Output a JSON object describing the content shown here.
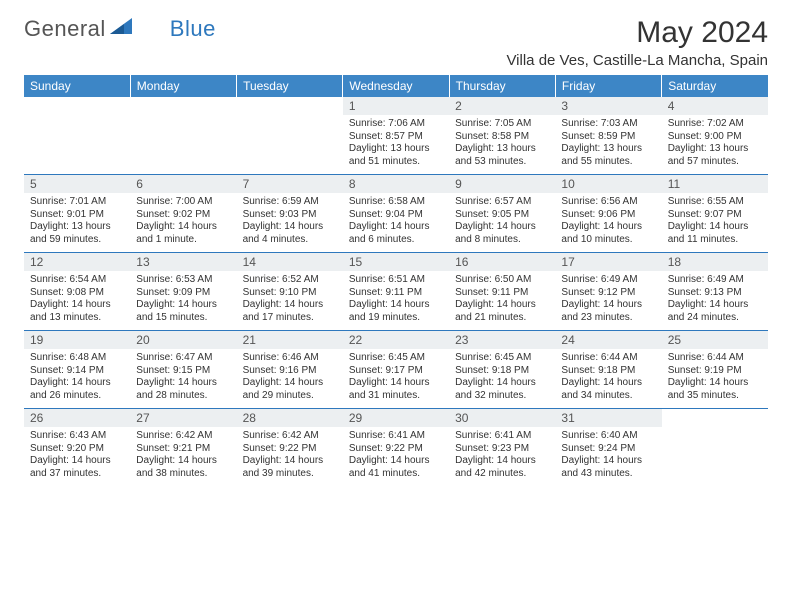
{
  "brand": {
    "a": "General",
    "b": "Blue"
  },
  "title": "May 2024",
  "location": "Villa de Ves, Castille-La Mancha, Spain",
  "colors": {
    "header_bg": "#3d86c6",
    "rule": "#2e78bd",
    "daynum_bg": "#eceff1",
    "brand_blue": "#2e78bd"
  },
  "dow": [
    "Sunday",
    "Monday",
    "Tuesday",
    "Wednesday",
    "Thursday",
    "Friday",
    "Saturday"
  ],
  "weeks": [
    [
      null,
      null,
      null,
      {
        "n": "1",
        "sr": "7:06 AM",
        "ss": "8:57 PM",
        "dl": "13 hours and 51 minutes."
      },
      {
        "n": "2",
        "sr": "7:05 AM",
        "ss": "8:58 PM",
        "dl": "13 hours and 53 minutes."
      },
      {
        "n": "3",
        "sr": "7:03 AM",
        "ss": "8:59 PM",
        "dl": "13 hours and 55 minutes."
      },
      {
        "n": "4",
        "sr": "7:02 AM",
        "ss": "9:00 PM",
        "dl": "13 hours and 57 minutes."
      }
    ],
    [
      {
        "n": "5",
        "sr": "7:01 AM",
        "ss": "9:01 PM",
        "dl": "13 hours and 59 minutes."
      },
      {
        "n": "6",
        "sr": "7:00 AM",
        "ss": "9:02 PM",
        "dl": "14 hours and 1 minute."
      },
      {
        "n": "7",
        "sr": "6:59 AM",
        "ss": "9:03 PM",
        "dl": "14 hours and 4 minutes."
      },
      {
        "n": "8",
        "sr": "6:58 AM",
        "ss": "9:04 PM",
        "dl": "14 hours and 6 minutes."
      },
      {
        "n": "9",
        "sr": "6:57 AM",
        "ss": "9:05 PM",
        "dl": "14 hours and 8 minutes."
      },
      {
        "n": "10",
        "sr": "6:56 AM",
        "ss": "9:06 PM",
        "dl": "14 hours and 10 minutes."
      },
      {
        "n": "11",
        "sr": "6:55 AM",
        "ss": "9:07 PM",
        "dl": "14 hours and 11 minutes."
      }
    ],
    [
      {
        "n": "12",
        "sr": "6:54 AM",
        "ss": "9:08 PM",
        "dl": "14 hours and 13 minutes."
      },
      {
        "n": "13",
        "sr": "6:53 AM",
        "ss": "9:09 PM",
        "dl": "14 hours and 15 minutes."
      },
      {
        "n": "14",
        "sr": "6:52 AM",
        "ss": "9:10 PM",
        "dl": "14 hours and 17 minutes."
      },
      {
        "n": "15",
        "sr": "6:51 AM",
        "ss": "9:11 PM",
        "dl": "14 hours and 19 minutes."
      },
      {
        "n": "16",
        "sr": "6:50 AM",
        "ss": "9:11 PM",
        "dl": "14 hours and 21 minutes."
      },
      {
        "n": "17",
        "sr": "6:49 AM",
        "ss": "9:12 PM",
        "dl": "14 hours and 23 minutes."
      },
      {
        "n": "18",
        "sr": "6:49 AM",
        "ss": "9:13 PM",
        "dl": "14 hours and 24 minutes."
      }
    ],
    [
      {
        "n": "19",
        "sr": "6:48 AM",
        "ss": "9:14 PM",
        "dl": "14 hours and 26 minutes."
      },
      {
        "n": "20",
        "sr": "6:47 AM",
        "ss": "9:15 PM",
        "dl": "14 hours and 28 minutes."
      },
      {
        "n": "21",
        "sr": "6:46 AM",
        "ss": "9:16 PM",
        "dl": "14 hours and 29 minutes."
      },
      {
        "n": "22",
        "sr": "6:45 AM",
        "ss": "9:17 PM",
        "dl": "14 hours and 31 minutes."
      },
      {
        "n": "23",
        "sr": "6:45 AM",
        "ss": "9:18 PM",
        "dl": "14 hours and 32 minutes."
      },
      {
        "n": "24",
        "sr": "6:44 AM",
        "ss": "9:18 PM",
        "dl": "14 hours and 34 minutes."
      },
      {
        "n": "25",
        "sr": "6:44 AM",
        "ss": "9:19 PM",
        "dl": "14 hours and 35 minutes."
      }
    ],
    [
      {
        "n": "26",
        "sr": "6:43 AM",
        "ss": "9:20 PM",
        "dl": "14 hours and 37 minutes."
      },
      {
        "n": "27",
        "sr": "6:42 AM",
        "ss": "9:21 PM",
        "dl": "14 hours and 38 minutes."
      },
      {
        "n": "28",
        "sr": "6:42 AM",
        "ss": "9:22 PM",
        "dl": "14 hours and 39 minutes."
      },
      {
        "n": "29",
        "sr": "6:41 AM",
        "ss": "9:22 PM",
        "dl": "14 hours and 41 minutes."
      },
      {
        "n": "30",
        "sr": "6:41 AM",
        "ss": "9:23 PM",
        "dl": "14 hours and 42 minutes."
      },
      {
        "n": "31",
        "sr": "6:40 AM",
        "ss": "9:24 PM",
        "dl": "14 hours and 43 minutes."
      },
      null
    ]
  ],
  "labels": {
    "sunrise": "Sunrise: ",
    "sunset": "Sunset: ",
    "daylight": "Daylight: "
  }
}
